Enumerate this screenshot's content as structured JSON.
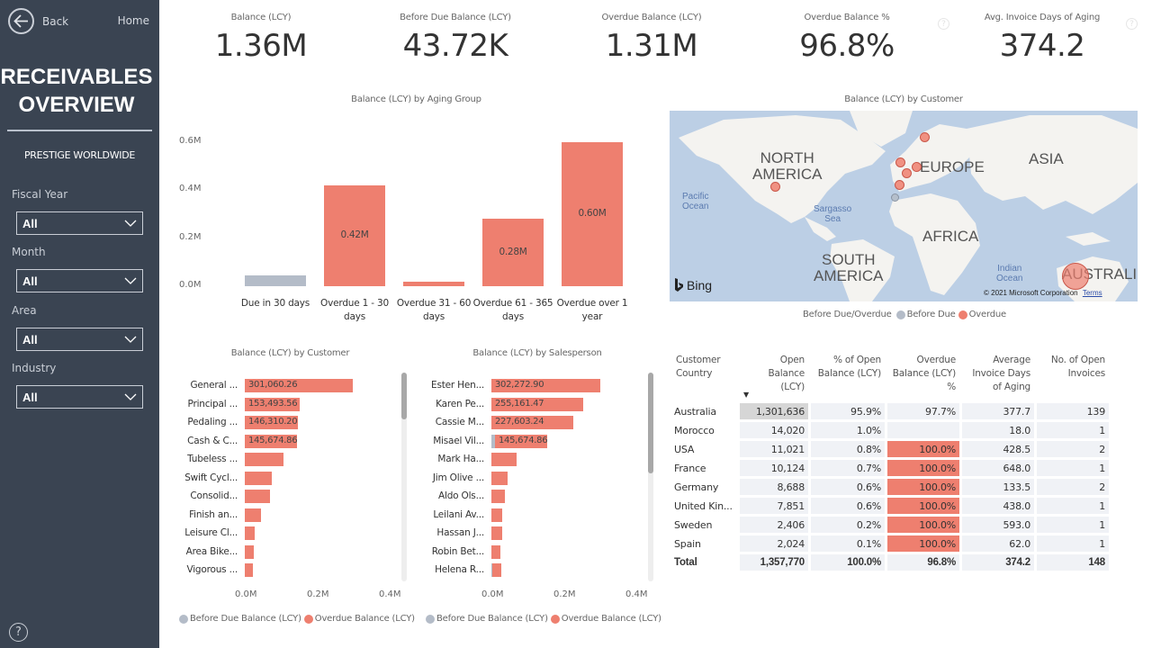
{
  "sidebar": {
    "back_label": "Back",
    "home_label": "Home",
    "title_line1": "RECEIVABLES",
    "title_line2": "OVERVIEW",
    "company": "PRESTIGE WORLDWIDE",
    "filters": [
      {
        "label": "Fiscal Year",
        "value": "All"
      },
      {
        "label": "Month",
        "value": "All"
      },
      {
        "label": "Area",
        "value": "All"
      },
      {
        "label": "Industry",
        "value": "All"
      }
    ],
    "help_icon": "?"
  },
  "kpis": [
    {
      "label": "Balance (LCY)",
      "value": "1.36M"
    },
    {
      "label": "Before Due Balance (LCY)",
      "value": "43.72K"
    },
    {
      "label": "Overdue Balance (LCY)",
      "value": "1.31M"
    },
    {
      "label": "Overdue Balance %",
      "value": "96.8%"
    },
    {
      "label": "Avg. Invoice Days of Aging",
      "value": "374.2"
    }
  ],
  "colors": {
    "overdue": "#ee7f6f",
    "before_due": "#b4bcc8",
    "sidebar_bg": "#3a4452"
  },
  "chart_data": [
    {
      "type": "bar",
      "title": "Balance (LCY) by Aging Group",
      "categories": [
        "Due in 30 days",
        "Overdue 1 - 30 days",
        "Overdue 31 - 60 days",
        "Overdue 61 - 365 days",
        "Overdue over 1 year"
      ],
      "values": [
        0.044,
        0.42,
        0.018,
        0.28,
        0.6
      ],
      "value_labels": [
        "",
        "0.42M",
        "",
        "0.28M",
        "0.60M"
      ],
      "colors": [
        "before_due",
        "overdue",
        "overdue",
        "overdue",
        "overdue"
      ],
      "yticks": [
        "0.0M",
        "0.2M",
        "0.4M",
        "0.6M"
      ],
      "ylim": [
        0,
        0.6
      ],
      "unit": "M",
      "grid": false
    },
    {
      "type": "bar",
      "orientation": "horizontal",
      "stacked": true,
      "title": "Balance (LCY) by Customer",
      "categories": [
        "General ...",
        "Principal ...",
        "Pedaling ...",
        "Cash & C...",
        "Tubeless ...",
        "Swift Cycl...",
        "Consolid...",
        "Finish an...",
        "Leisure Cl...",
        "Area Bike...",
        "Vigorous ..."
      ],
      "series": [
        {
          "name": "Before Due Balance (LCY)",
          "values": [
            0,
            0,
            0,
            0,
            0,
            0,
            0,
            0,
            0,
            0,
            0
          ]
        },
        {
          "name": "Overdue Balance (LCY)",
          "values": [
            0.30106026,
            0.15349356,
            0.1463102,
            0.14567486,
            0.107,
            0.075,
            0.07,
            0.045,
            0.028,
            0.025,
            0.023
          ]
        }
      ],
      "value_labels": [
        "301,060.26",
        "153,493.56",
        "146,310.20",
        "145,674.86",
        "",
        "",
        "",
        "",
        "",
        "",
        ""
      ],
      "xticks": [
        "0.0M",
        "0.2M",
        "0.4M"
      ],
      "xlim": [
        0,
        0.4
      ],
      "legend": "bottom",
      "legend_entries": [
        "Before Due Balance (LCY)",
        "Overdue Balance (LCY)"
      ]
    },
    {
      "type": "bar",
      "orientation": "horizontal",
      "stacked": true,
      "title": "Balance (LCY) by Salesperson",
      "categories": [
        "Ester Hen...",
        "Karen Pe...",
        "Cassie M...",
        "Misael Vil...",
        "Mark Ha...",
        "Jim Olive ...",
        "Aldo Ols...",
        "Leilani Av...",
        "Hassan J...",
        "Robin Bet...",
        "Helena R..."
      ],
      "series": [
        {
          "name": "Before Due Balance (LCY)",
          "values": [
            0,
            0,
            0,
            0.01,
            0,
            0,
            0,
            0,
            0,
            0,
            0.003
          ]
        },
        {
          "name": "Overdue Balance (LCY)",
          "values": [
            0.3022729,
            0.25516147,
            0.22760324,
            0.14567486,
            0.07,
            0.045,
            0.038,
            0.03,
            0.03,
            0.025,
            0.024
          ]
        }
      ],
      "value_labels": [
        "302,272.90",
        "255,161.47",
        "227,603.24",
        "145,674.86",
        "",
        "",
        "",
        "",
        "",
        "",
        ""
      ],
      "xticks": [
        "0.0M",
        "0.2M",
        "0.4M"
      ],
      "xlim": [
        0,
        0.4
      ],
      "legend": "bottom",
      "legend_entries": [
        "Before Due Balance (LCY)",
        "Overdue Balance (LCY)"
      ]
    },
    {
      "type": "scatter",
      "subtype": "map",
      "title": "Balance (LCY) by Customer",
      "legend_title": "Before Due/Overdue",
      "legend_entries": [
        "Before Due",
        "Overdue"
      ],
      "legend": "bottom",
      "points": [
        {
          "location": "Australia",
          "status": "Overdue",
          "size": "large"
        },
        {
          "location": "USA",
          "status": "Overdue",
          "size": "small"
        },
        {
          "location": "Sweden",
          "status": "Overdue",
          "size": "small"
        },
        {
          "location": "United Kingdom",
          "status": "Overdue",
          "size": "small"
        },
        {
          "location": "Germany",
          "status": "Overdue",
          "size": "small"
        },
        {
          "location": "France",
          "status": "Overdue",
          "size": "small"
        },
        {
          "location": "Spain",
          "status": "Overdue",
          "size": "small"
        },
        {
          "location": "Morocco",
          "status": "Before Due",
          "size": "small"
        }
      ]
    }
  ],
  "map": {
    "labels": {
      "north_america": [
        "NORTH",
        "AMERICA"
      ],
      "south_america": [
        "SOUTH",
        "AMERICA"
      ],
      "europe": "EUROPE",
      "asia": "ASIA",
      "africa": "AFRICA",
      "australia": "AUSTRALI"
    },
    "oceans": {
      "pacific": [
        "Pacific",
        "Ocean"
      ],
      "sargasso": [
        "Sargasso",
        "Sea"
      ],
      "indian": [
        "Indian",
        "Ocean"
      ]
    },
    "brand": "Bing",
    "copyright": "© 2021 Microsoft Corporation",
    "terms": "Terms"
  },
  "table": {
    "headers": [
      "Customer Country",
      "Open Balance (LCY)",
      "% of Open Balance (LCY)",
      "Overdue Balance (LCY) %",
      "Average Invoice Days of Aging",
      "No. of Open Invoices"
    ],
    "rows": [
      {
        "country": "Australia",
        "open_balance": "1,301,636",
        "pct_open": "95.9%",
        "overdue_pct": "97.7%",
        "avg_days": "377.7",
        "num_invoices": "139"
      },
      {
        "country": "Morocco",
        "open_balance": "14,020",
        "pct_open": "1.0%",
        "overdue_pct": "",
        "avg_days": "18.0",
        "num_invoices": "1"
      },
      {
        "country": "USA",
        "open_balance": "11,021",
        "pct_open": "0.8%",
        "overdue_pct": "100.0%",
        "avg_days": "428.5",
        "num_invoices": "2"
      },
      {
        "country": "France",
        "open_balance": "10,124",
        "pct_open": "0.7%",
        "overdue_pct": "100.0%",
        "avg_days": "648.0",
        "num_invoices": "1"
      },
      {
        "country": "Germany",
        "open_balance": "8,688",
        "pct_open": "0.6%",
        "overdue_pct": "100.0%",
        "avg_days": "133.5",
        "num_invoices": "2"
      },
      {
        "country": "United Kin...",
        "open_balance": "7,851",
        "pct_open": "0.6%",
        "overdue_pct": "100.0%",
        "avg_days": "438.0",
        "num_invoices": "1"
      },
      {
        "country": "Sweden",
        "open_balance": "2,406",
        "pct_open": "0.2%",
        "overdue_pct": "100.0%",
        "avg_days": "593.0",
        "num_invoices": "1"
      },
      {
        "country": "Spain",
        "open_balance": "2,024",
        "pct_open": "0.1%",
        "overdue_pct": "100.0%",
        "avg_days": "62.0",
        "num_invoices": "1"
      }
    ],
    "total": {
      "country": "Total",
      "open_balance": "1,357,770",
      "pct_open": "100.0%",
      "overdue_pct": "96.8%",
      "avg_days": "374.2",
      "num_invoices": "148"
    },
    "sort_indicator": "▼"
  }
}
